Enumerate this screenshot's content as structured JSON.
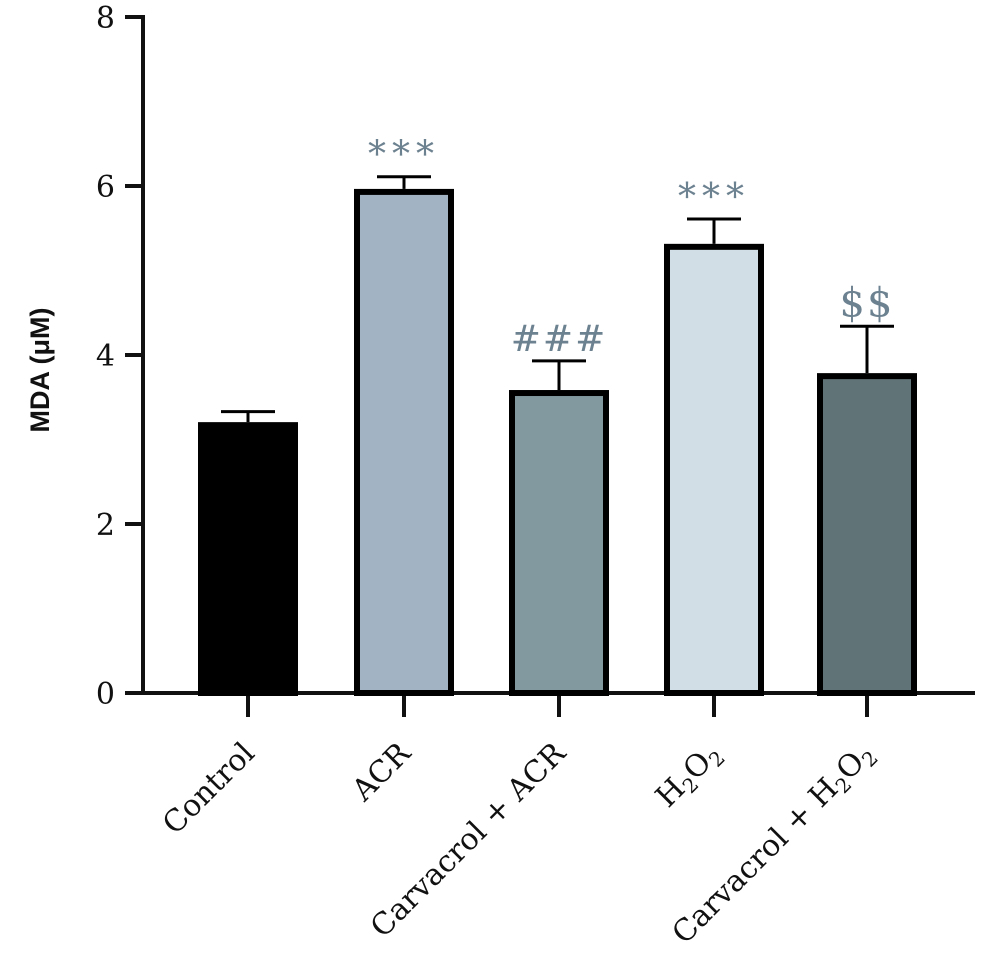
{
  "chart_data": {
    "type": "bar",
    "title": "",
    "xlabel": "",
    "ylabel": "MDA (μM)",
    "ylim": [
      0,
      8
    ],
    "yticks": [
      0,
      2,
      4,
      6,
      8
    ],
    "grid": false,
    "categories": [
      {
        "parts": [
          {
            "t": "Control"
          }
        ]
      },
      {
        "parts": [
          {
            "t": "ACR"
          }
        ]
      },
      {
        "parts": [
          {
            "t": "Carvacrol + ACR"
          }
        ]
      },
      {
        "parts": [
          {
            "t": "H"
          },
          {
            "t": "2",
            "sub": true
          },
          {
            "t": "O"
          },
          {
            "t": "2",
            "sub": true
          }
        ]
      },
      {
        "parts": [
          {
            "t": "Carvacrol + H"
          },
          {
            "t": "2",
            "sub": true
          },
          {
            "t": "O"
          },
          {
            "t": "2",
            "sub": true
          }
        ]
      }
    ],
    "values": [
      3.17,
      5.93,
      3.55,
      5.28,
      3.75
    ],
    "errors": [
      0.16,
      0.18,
      0.38,
      0.33,
      0.59
    ],
    "annotations": [
      "",
      "***",
      "###",
      "***",
      "$$"
    ],
    "colors": [
      "#000000",
      "#a2b4c3",
      "#82999f",
      "#d2dee6",
      "#607376"
    ]
  }
}
